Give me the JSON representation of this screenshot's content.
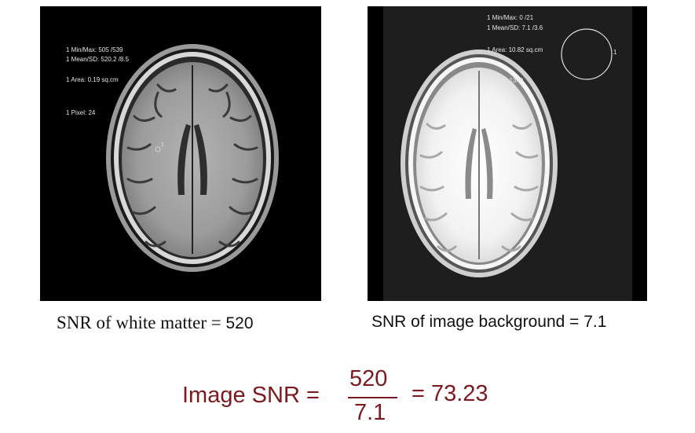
{
  "left_scan": {
    "overlay": {
      "minmax": "1 Min/Max: 505 /539",
      "meansd": "1 Mean/SD: 520.2 /8.5",
      "area": "1 Area: 0.19 sq.cm",
      "pixel": "1 Pixel: 24",
      "roi_label": "1"
    }
  },
  "right_scan": {
    "overlay": {
      "minmax": "1 Min/Max: 0 /21",
      "meansd": "1 Mean/SD: 7.1 /3.6",
      "area": "1 Area: 10.82 sq.cm",
      "pixel": "1 Pixel: 1340",
      "roi_label": "1"
    }
  },
  "captions": {
    "left_text": "SNR of white matter  = ",
    "left_value": "520",
    "right": "SNR of image background = 7.1"
  },
  "equation": {
    "label": "Image SNR = ",
    "numerator": "520",
    "denominator": "7.1",
    "result": " = 73.23"
  },
  "colors": {
    "equation": "#7b1a1f",
    "scan_background": "#000000"
  }
}
